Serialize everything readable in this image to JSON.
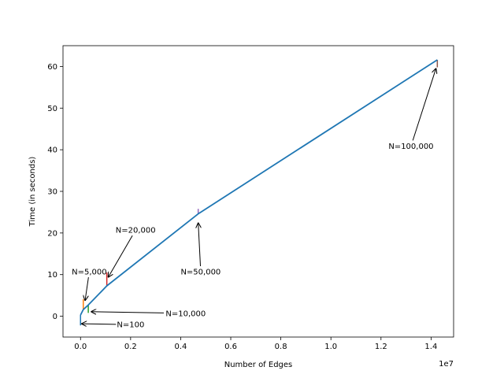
{
  "chart_data": {
    "type": "line",
    "title": "",
    "xlabel": "Number of Edges",
    "ylabel": "Time (in seconds)",
    "x_offset_label": "1e7",
    "xlim": [
      -0.07,
      1.49
    ],
    "ylim": [
      -5,
      65
    ],
    "x_ticks": [
      0.0,
      0.2,
      0.4,
      0.6,
      0.8,
      1.0,
      1.2,
      1.4
    ],
    "x_tick_labels": [
      "0.0",
      "0.2",
      "0.4",
      "0.6",
      "0.8",
      "1.0",
      "1.2",
      "1.4"
    ],
    "y_ticks": [
      0,
      10,
      20,
      30,
      40,
      50,
      60
    ],
    "y_tick_labels": [
      "0",
      "10",
      "20",
      "30",
      "40",
      "50",
      "60"
    ],
    "grid": false,
    "line": {
      "color": "#1f77b4",
      "points": [
        {
          "x": 0.0,
          "y": 0.3
        },
        {
          "x": 0.011,
          "y": 1.6
        },
        {
          "x": 0.031,
          "y": 2.7
        },
        {
          "x": 0.105,
          "y": 7.3
        },
        {
          "x": 0.47,
          "y": 24.6
        },
        {
          "x": 1.425,
          "y": 61.6
        }
      ]
    },
    "error_bars": [
      {
        "x": 0.0,
        "low": -2.2,
        "high": 0.3,
        "color": "#1f77b4"
      },
      {
        "x": 0.011,
        "low": 1.6,
        "high": 4.1,
        "color": "#ff7f0e"
      },
      {
        "x": 0.031,
        "low": 0.8,
        "high": 2.7,
        "color": "#2ca02c"
      },
      {
        "x": 0.105,
        "low": 7.3,
        "high": 10.5,
        "color": "#d62728"
      },
      {
        "x": 0.47,
        "low": 24.6,
        "high": 25.8,
        "color": "#9467bd"
      },
      {
        "x": 1.425,
        "low": 59.8,
        "high": 61.6,
        "color": "#8c564b"
      }
    ],
    "annotations": [
      {
        "text": "N=100",
        "tx": 0.2,
        "ty": -2.0,
        "ax": 0.003,
        "ay": -1.8
      },
      {
        "text": "N=5,000",
        "tx": 0.035,
        "ty": 10.7,
        "ax": 0.018,
        "ay": 3.7
      },
      {
        "text": "N=10,000",
        "tx": 0.42,
        "ty": 0.7,
        "ax": 0.041,
        "ay": 1.1
      },
      {
        "text": "N=20,000",
        "tx": 0.22,
        "ty": 20.7,
        "ax": 0.11,
        "ay": 9.3
      },
      {
        "text": "N=50,000",
        "tx": 0.48,
        "ty": 10.7,
        "ax": 0.47,
        "ay": 22.5
      },
      {
        "text": "N=100,000",
        "tx": 1.32,
        "ty": 40.9,
        "ax": 1.42,
        "ay": 59.6
      }
    ]
  }
}
